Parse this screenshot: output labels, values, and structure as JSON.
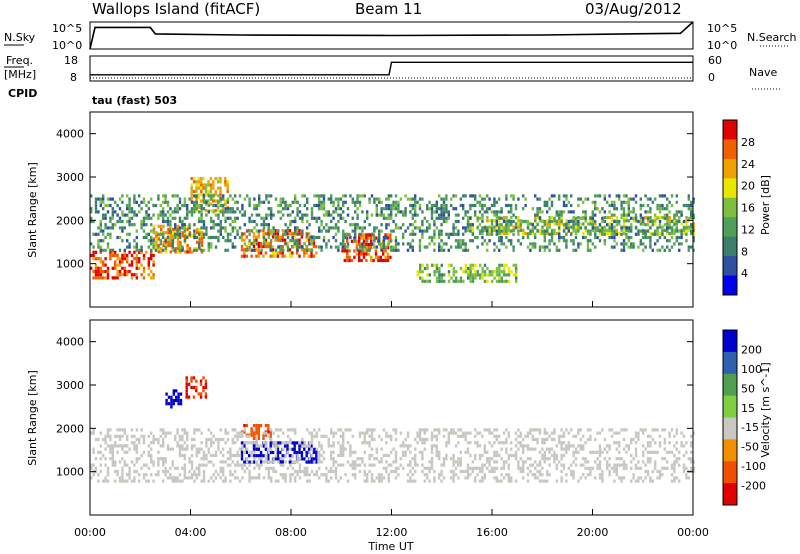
{
  "header": {
    "title_left": "Wallops Island (fitACF)",
    "title_center": "Beam 11",
    "title_right": "03/Aug/2012"
  },
  "top_panel": {
    "left_label": "N.Sky",
    "right_label": "N.Search",
    "y_ticks": [
      "10^5",
      "10^0"
    ]
  },
  "freq_panel": {
    "left_label_top": "Freq.",
    "left_label_bottom": "[MHz]",
    "right_label": "Nave",
    "left_ticks": [
      "18",
      "8"
    ],
    "right_ticks": [
      "60",
      "0"
    ],
    "cpid_label": "CPID",
    "cpid_value": "tau (fast) 503"
  },
  "colors": {
    "power": [
      "#0000ee",
      "#2f4fa0",
      "#3a7f6a",
      "#4f9f5a",
      "#7fbf3f",
      "#e7e700",
      "#f0a000",
      "#f06000",
      "#e00000"
    ],
    "velocity": [
      "#0000cc",
      "#2f5faf",
      "#4f9f4f",
      "#7fcf3f",
      "#c8c8c0",
      "#f09000",
      "#f05000",
      "#e00000"
    ]
  },
  "chart_data": [
    {
      "type": "heatmap",
      "ylabel": "Slant Range [km]",
      "xlabel": "",
      "ylim": [
        0,
        4500
      ],
      "y_ticks": [
        1000,
        2000,
        3000,
        4000
      ],
      "colorbar": {
        "label": "Power [dB]",
        "ticks": [
          "4",
          "8",
          "12",
          "16",
          "20",
          "24",
          "28"
        ],
        "range": [
          0,
          30
        ]
      },
      "regions": [
        {
          "t0": 0.0,
          "t1": 2.5,
          "r0": 700,
          "r1": 1300,
          "value": 26
        },
        {
          "t0": 2.5,
          "t1": 4.5,
          "r0": 1300,
          "r1": 1900,
          "value": 22
        },
        {
          "t0": 4.0,
          "t1": 5.5,
          "r0": 2200,
          "r1": 3000,
          "value": 20
        },
        {
          "t0": 6.0,
          "t1": 9.0,
          "r0": 1200,
          "r1": 1800,
          "value": 24
        },
        {
          "t0": 10.0,
          "t1": 12.0,
          "r0": 1100,
          "r1": 1700,
          "value": 26
        },
        {
          "t0": 13.0,
          "t1": 17.0,
          "r0": 600,
          "r1": 1000,
          "value": 14
        },
        {
          "t0": 15.0,
          "t1": 24.0,
          "r0": 1700,
          "r1": 2100,
          "value": 16
        },
        {
          "t0": 0.0,
          "t1": 24.0,
          "r0": 1300,
          "r1": 2600,
          "value": 10
        }
      ]
    },
    {
      "type": "heatmap",
      "ylabel": "Slant Range [km]",
      "xlabel": "Time UT",
      "ylim": [
        0,
        4500
      ],
      "y_ticks": [
        1000,
        2000,
        3000,
        4000
      ],
      "x_ticks": [
        "00:00",
        "04:00",
        "08:00",
        "12:00",
        "16:00",
        "20:00",
        "00:00"
      ],
      "colorbar": {
        "label": "Velocity [m s^-1]",
        "ticks": [
          "200",
          "100",
          "50",
          "15",
          "-15",
          "-50",
          "-100",
          "-200"
        ],
        "range": [
          -250,
          250
        ]
      },
      "regions": [
        {
          "t0": 3.0,
          "t1": 3.6,
          "r0": 2500,
          "r1": 2900,
          "value": 200
        },
        {
          "t0": 3.8,
          "t1": 4.6,
          "r0": 2700,
          "r1": 3200,
          "value": -80
        },
        {
          "t0": 6.0,
          "t1": 9.0,
          "r0": 1200,
          "r1": 1700,
          "value": 180
        },
        {
          "t0": 6.0,
          "t1": 7.2,
          "r0": 1800,
          "r1": 2100,
          "value": -60
        },
        {
          "t0": 0.0,
          "t1": 24.0,
          "r0": 800,
          "r1": 2000,
          "value": 0
        }
      ]
    },
    {
      "type": "line",
      "name": "N.Sky",
      "x": [
        0,
        0.2,
        2.4,
        2.6,
        6,
        12,
        18,
        23.5,
        24
      ],
      "y": [
        0.0,
        4.0,
        4.0,
        2.8,
        2.6,
        2.5,
        2.6,
        2.9,
        5.0
      ],
      "ylim": [
        0,
        5
      ]
    },
    {
      "type": "line",
      "name": "Freq.",
      "x": [
        0,
        0.2,
        11.9,
        12.0,
        24
      ],
      "y": [
        10.5,
        10.5,
        10.5,
        15.5,
        15.5
      ],
      "ylim": [
        8,
        18
      ]
    }
  ]
}
